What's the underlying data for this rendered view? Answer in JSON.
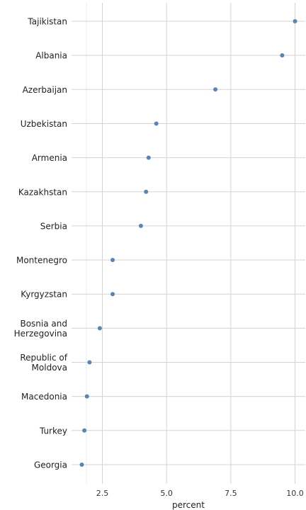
{
  "chart_data": {
    "type": "scatter",
    "xlabel": "percent",
    "ylabel": "",
    "xlim": [
      1.3,
      10.4
    ],
    "x_ticks": [
      2.5,
      5.0,
      7.5,
      10.0
    ],
    "x_tick_labels": [
      "2.5",
      "5.0",
      "7.5",
      "10.0"
    ],
    "grid": true,
    "categories": [
      "Tajikistan",
      "Albania",
      "Azerbaijan",
      "Uzbekistan",
      "Armenia",
      "Kazakhstan",
      "Serbia",
      "Montenegro",
      "Kyrgyzstan",
      "Bosnia and\nHerzegovina",
      "Republic of\nMoldova",
      "Macedonia",
      "Turkey",
      "Georgia"
    ],
    "values": [
      10.0,
      9.5,
      6.9,
      4.6,
      4.3,
      4.2,
      4.0,
      2.9,
      2.9,
      2.4,
      2.0,
      1.9,
      1.8,
      1.7
    ],
    "point_color": "#5b84b1"
  }
}
